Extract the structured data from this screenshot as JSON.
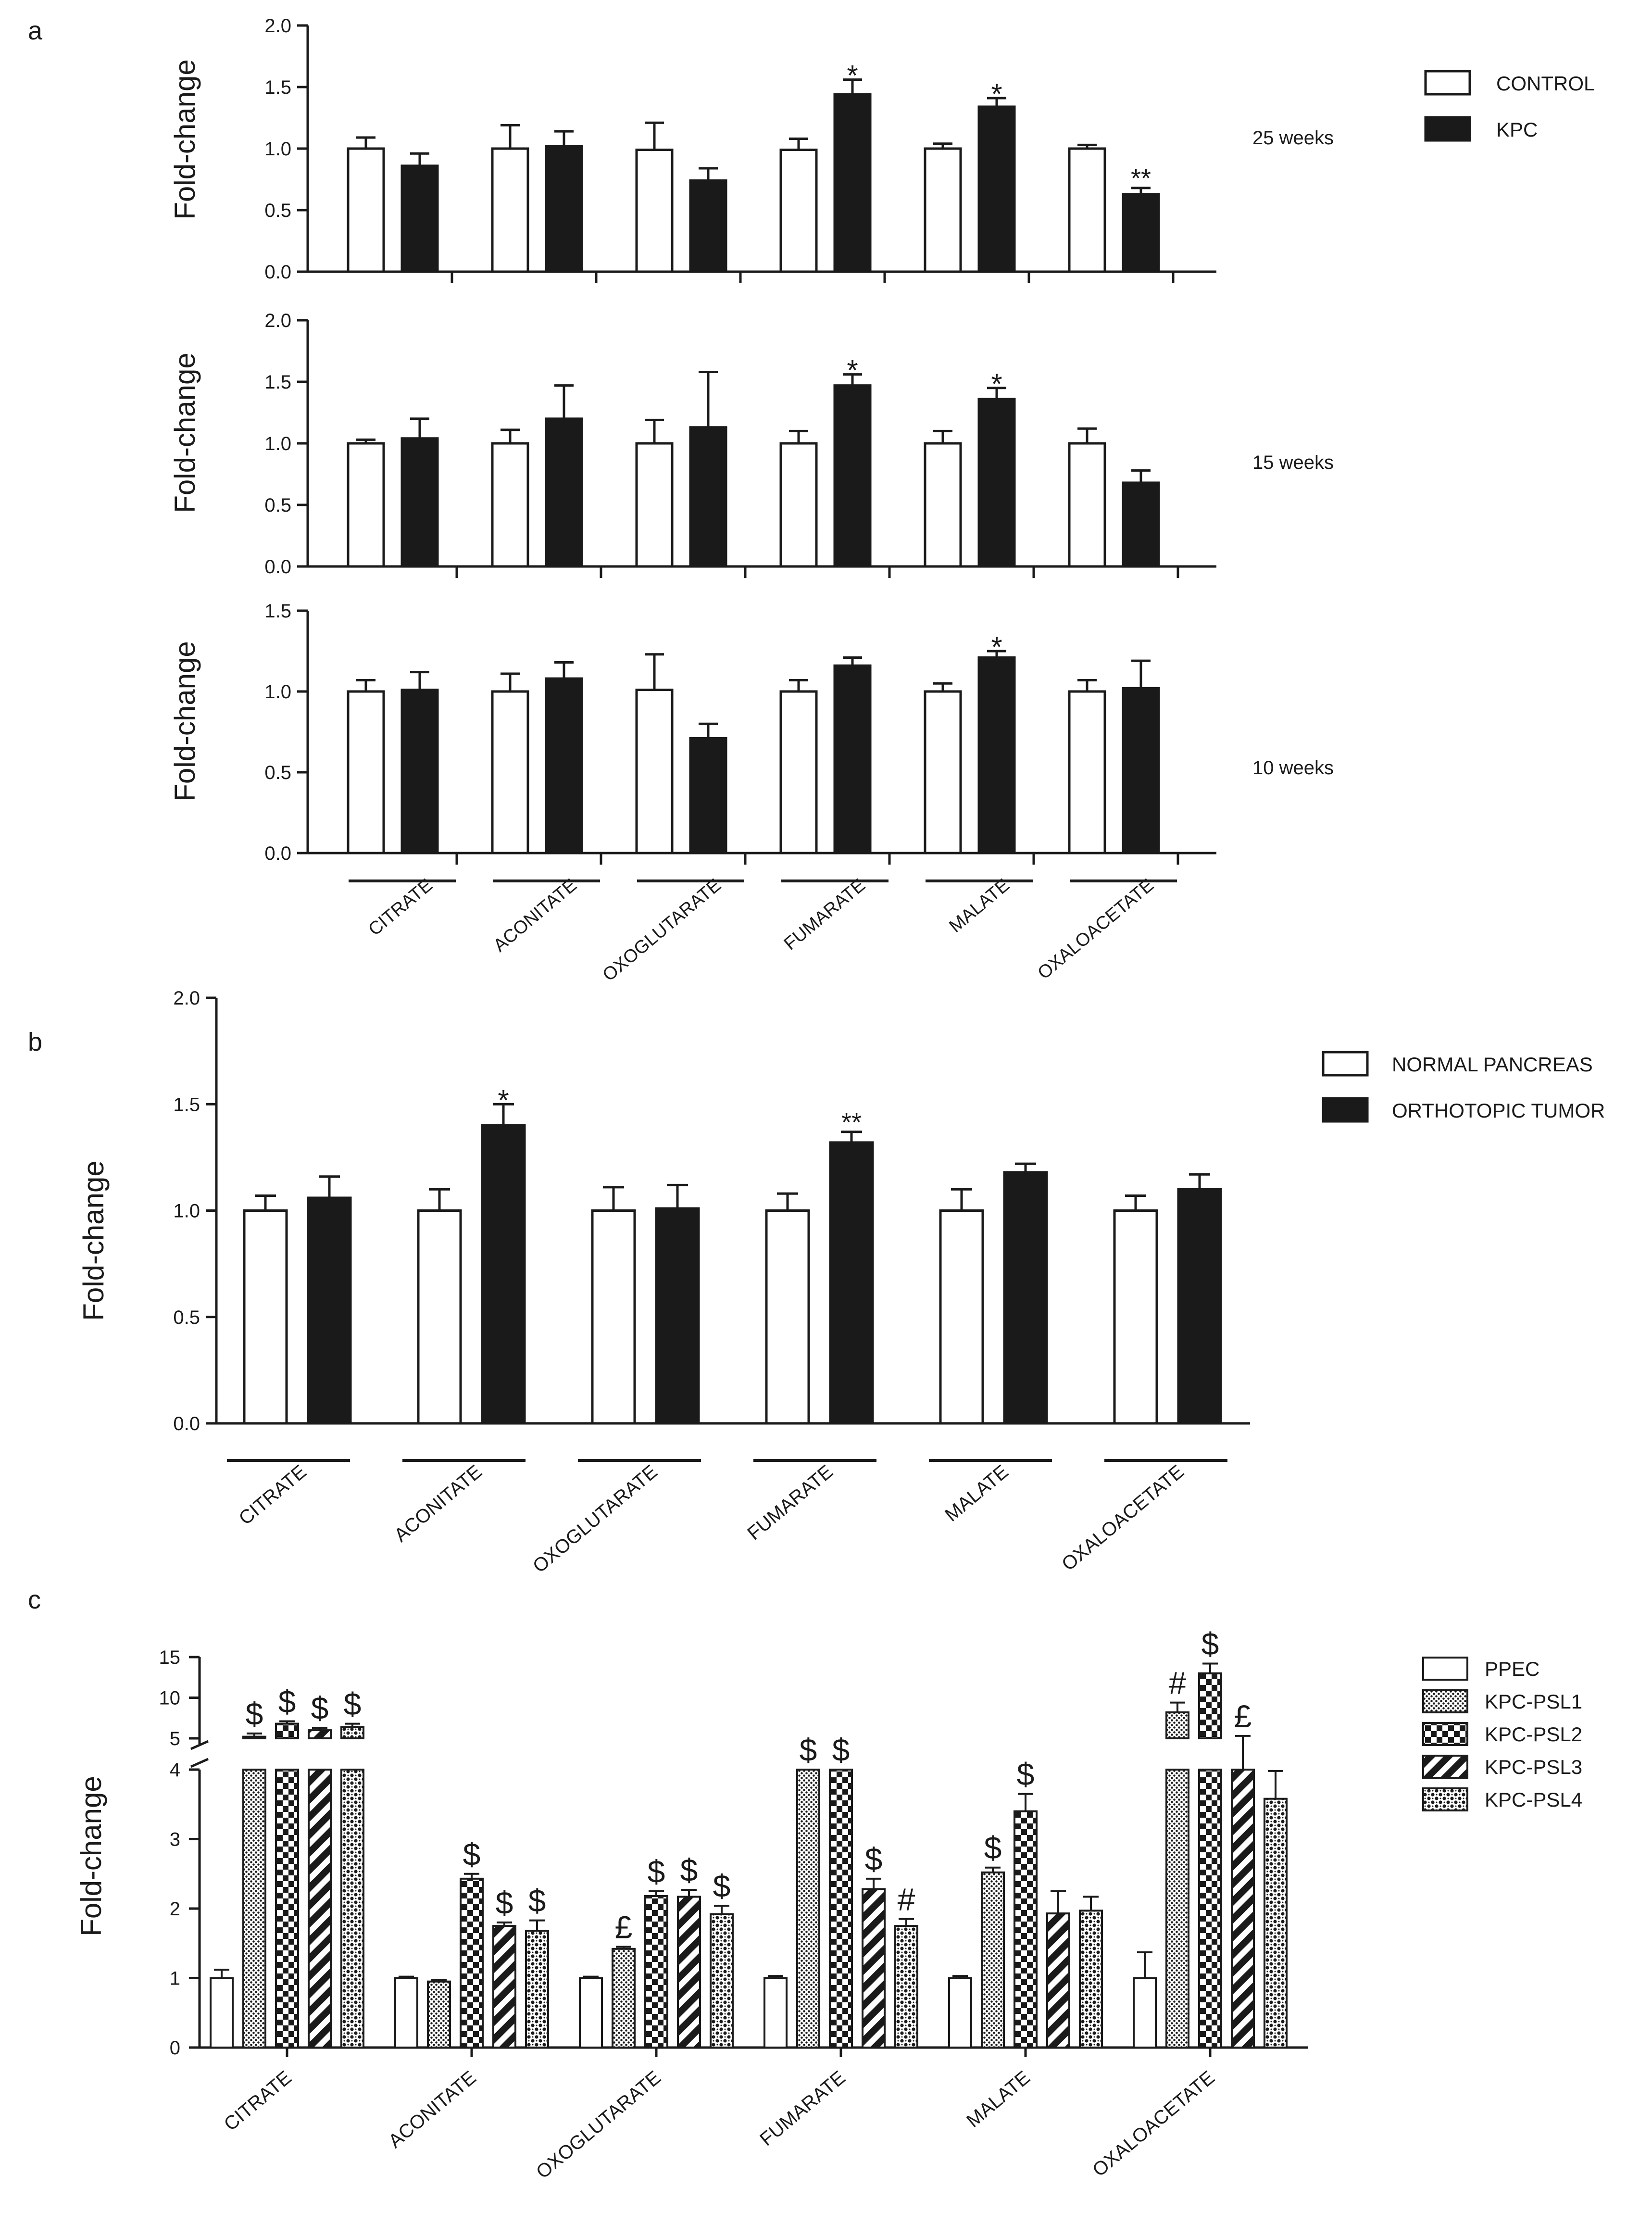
{
  "figure": {
    "panel_labels": [
      "a",
      "b",
      "c"
    ]
  },
  "colors": {
    "white_fill": "#ffffff",
    "black_fill": "#1a1a1a",
    "axis": "#1a1a1a"
  },
  "chart_data": [
    {
      "id": "a1",
      "panel": "a",
      "type": "bar",
      "title": "25 weeks",
      "xlabel": "",
      "ylabel": "Fold-change",
      "ylim": [
        0,
        2
      ],
      "yticks": [
        0,
        0.5,
        1,
        1.5,
        2
      ],
      "ytick_labels": [
        "0.0",
        "0.5",
        "1.0",
        "1.5",
        "2.0"
      ],
      "categories": [
        "CITRATE",
        "ACONITATE",
        "OXOGLUTARATE",
        "FUMARATE",
        "MALATE",
        "OXALOACETATE"
      ],
      "series": [
        {
          "name": "CONTROL",
          "fill": "white",
          "values": [
            1.0,
            1.0,
            0.99,
            0.99,
            1.0,
            1.0
          ],
          "errors": [
            0.09,
            0.19,
            0.22,
            0.09,
            0.04,
            0.03
          ],
          "marks": [
            "",
            "",
            "",
            "",
            "",
            ""
          ]
        },
        {
          "name": "KPC",
          "fill": "black",
          "values": [
            0.86,
            1.02,
            0.74,
            1.44,
            1.34,
            0.63
          ],
          "errors": [
            0.1,
            0.12,
            0.1,
            0.12,
            0.07,
            0.05
          ],
          "marks": [
            "",
            "",
            "",
            "*",
            "*",
            "**"
          ]
        }
      ],
      "legend": {
        "entries": [
          "CONTROL",
          "KPC"
        ],
        "position": "right"
      }
    },
    {
      "id": "a2",
      "panel": "a",
      "type": "bar",
      "title": "15 weeks",
      "xlabel": "",
      "ylabel": "Fold-change",
      "ylim": [
        0,
        2
      ],
      "yticks": [
        0,
        0.5,
        1,
        1.5,
        2
      ],
      "ytick_labels": [
        "0.0",
        "0.5",
        "1.0",
        "1.5",
        "2.0"
      ],
      "categories": [
        "CITRATE",
        "ACONITATE",
        "OXOGLUTARATE",
        "FUMARATE",
        "MALATE",
        "OXALOACETATE"
      ],
      "series": [
        {
          "name": "CONTROL",
          "fill": "white",
          "values": [
            1.0,
            1.0,
            1.0,
            1.0,
            1.0,
            1.0
          ],
          "errors": [
            0.03,
            0.11,
            0.19,
            0.1,
            0.1,
            0.12
          ],
          "marks": [
            "",
            "",
            "",
            "",
            "",
            ""
          ]
        },
        {
          "name": "KPC",
          "fill": "black",
          "values": [
            1.04,
            1.2,
            1.13,
            1.47,
            1.36,
            0.68
          ],
          "errors": [
            0.16,
            0.27,
            0.45,
            0.09,
            0.09,
            0.1
          ],
          "marks": [
            "",
            "",
            "",
            "*",
            "*",
            ""
          ]
        }
      ]
    },
    {
      "id": "a3",
      "panel": "a",
      "type": "bar",
      "title": "10 weeks",
      "xlabel": "",
      "ylabel": "Fold-change",
      "ylim": [
        0,
        1.5
      ],
      "yticks": [
        0,
        0.5,
        1,
        1.5
      ],
      "ytick_labels": [
        "0.0",
        "0.5",
        "1.0",
        "1.5"
      ],
      "categories": [
        "CITRATE",
        "ACONITATE",
        "OXOGLUTARATE",
        "FUMARATE",
        "MALATE",
        "OXALOACETATE"
      ],
      "series": [
        {
          "name": "CONTROL",
          "fill": "white",
          "values": [
            1.0,
            1.0,
            1.01,
            1.0,
            1.0,
            1.0
          ],
          "errors": [
            0.07,
            0.11,
            0.22,
            0.07,
            0.05,
            0.07
          ],
          "marks": [
            "",
            "",
            "",
            "",
            "",
            ""
          ]
        },
        {
          "name": "KPC",
          "fill": "black",
          "values": [
            1.01,
            1.08,
            0.71,
            1.16,
            1.21,
            1.02
          ],
          "errors": [
            0.11,
            0.1,
            0.09,
            0.05,
            0.04,
            0.17
          ],
          "marks": [
            "",
            "",
            "",
            "",
            "*",
            ""
          ]
        }
      ]
    },
    {
      "id": "b",
      "panel": "b",
      "type": "bar",
      "title": "",
      "xlabel": "",
      "ylabel": "Fold-change",
      "ylim": [
        0,
        2
      ],
      "yticks": [
        0,
        0.5,
        1,
        1.5,
        2
      ],
      "ytick_labels": [
        "0.0",
        "0.5",
        "1.0",
        "1.5",
        "2.0"
      ],
      "categories": [
        "CITRATE",
        "ACONITATE",
        "OXOGLUTARATE",
        "FUMARATE",
        "MALATE",
        "OXALOACETATE"
      ],
      "series": [
        {
          "name": "NORMAL PANCREAS",
          "fill": "white",
          "values": [
            1.0,
            1.0,
            1.0,
            1.0,
            1.0,
            1.0
          ],
          "errors": [
            0.07,
            0.1,
            0.11,
            0.08,
            0.1,
            0.07
          ],
          "marks": [
            "",
            "",
            "",
            "",
            "",
            ""
          ]
        },
        {
          "name": "ORTHOTOPIC TUMOR",
          "fill": "black",
          "values": [
            1.06,
            1.4,
            1.01,
            1.32,
            1.18,
            1.1
          ],
          "errors": [
            0.1,
            0.1,
            0.11,
            0.05,
            0.04,
            0.07
          ],
          "marks": [
            "",
            "*",
            "",
            "**",
            "",
            ""
          ]
        }
      ],
      "legend": {
        "entries": [
          "NORMAL PANCREAS",
          "ORTHOTOPIC TUMOR"
        ],
        "position": "right"
      }
    },
    {
      "id": "c",
      "panel": "c",
      "type": "bar",
      "title": "",
      "xlabel": "",
      "ylabel": "Fold-change",
      "axis_break": {
        "lower": [
          0,
          4
        ],
        "upper": [
          4,
          15
        ]
      },
      "yticks_lower": [
        0,
        1,
        2,
        3,
        4
      ],
      "ytick_labels_lower": [
        "0",
        "1",
        "2",
        "3",
        "4"
      ],
      "yticks_upper": [
        5,
        10,
        15
      ],
      "ytick_labels_upper": [
        "5",
        "10",
        "15"
      ],
      "categories": [
        "CITRATE",
        "ACONITATE",
        "OXOGLUTARATE",
        "FUMARATE",
        "MALATE",
        "OXALOACETATE"
      ],
      "series": [
        {
          "name": "PPEC",
          "pattern": "plain",
          "values": [
            1.0,
            1.0,
            1.0,
            1.0,
            1.0,
            1.0
          ],
          "errors": [
            0.12,
            0.02,
            0.02,
            0.03,
            0.03,
            0.37
          ],
          "marks": [
            "",
            "",
            "",
            "",
            "",
            ""
          ]
        },
        {
          "name": "KPC-PSL1",
          "pattern": "fine-dots",
          "values": [
            5.2,
            0.95,
            1.42,
            4.3,
            2.52,
            8.2
          ],
          "errors": [
            0.4,
            0.02,
            0.03,
            0.2,
            0.07,
            1.2
          ],
          "marks": [
            "$",
            "",
            "£",
            "$",
            "$",
            "#"
          ]
        },
        {
          "name": "KPC-PSL2",
          "pattern": "checker",
          "values": [
            6.8,
            2.43,
            2.18,
            4.4,
            3.4,
            13.0
          ],
          "errors": [
            0.3,
            0.07,
            0.07,
            0.2,
            0.25,
            1.2
          ],
          "marks": [
            "$",
            "$",
            "$",
            "$",
            "$",
            "$"
          ]
        },
        {
          "name": "KPC-PSL3",
          "pattern": "diagonal",
          "values": [
            6.0,
            1.75,
            2.17,
            2.28,
            1.93,
            4.7
          ],
          "errors": [
            0.3,
            0.05,
            0.1,
            0.15,
            0.32,
            0.6
          ],
          "marks": [
            "$",
            "$",
            "$",
            "$",
            "",
            "£"
          ]
        },
        {
          "name": "KPC-PSL4",
          "pattern": "coarse-dots",
          "values": [
            6.4,
            1.68,
            1.92,
            1.75,
            1.97,
            3.58
          ],
          "errors": [
            0.4,
            0.15,
            0.12,
            0.1,
            0.2,
            0.4
          ],
          "marks": [
            "$",
            "$",
            "$",
            "#",
            "",
            ""
          ]
        }
      ],
      "legend": {
        "entries": [
          "PPEC",
          "KPC-PSL1",
          "KPC-PSL2",
          "KPC-PSL3",
          "KPC-PSL4"
        ],
        "position": "right"
      }
    }
  ]
}
